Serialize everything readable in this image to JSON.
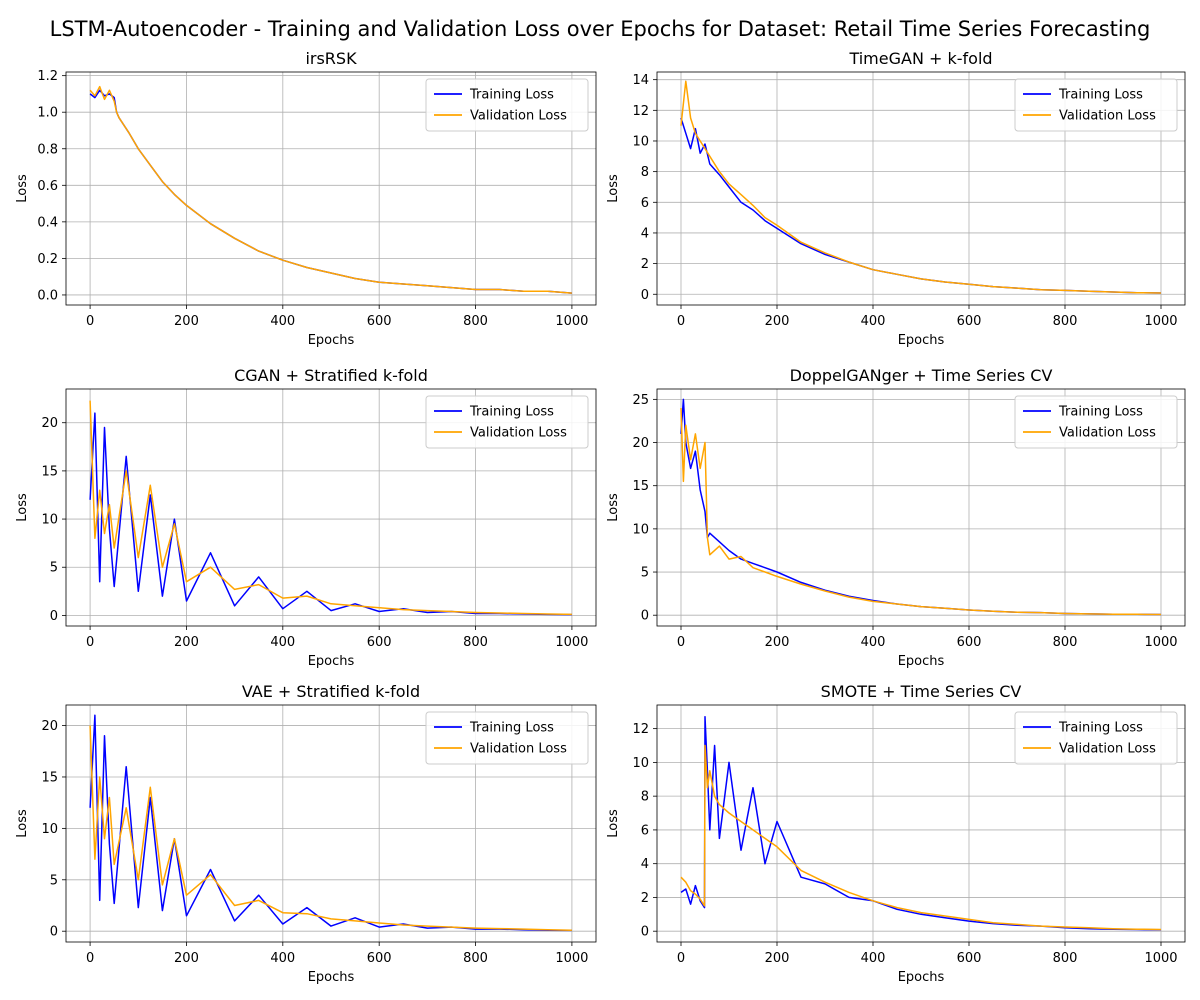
{
  "suptitle": "LSTM-Autoencoder - Training and Validation Loss over Epochs for Dataset: Retail Time Series Forecasting",
  "colors": {
    "train": "#0000ff",
    "val": "#ffa500",
    "grid": "#b0b0b0",
    "axes": "#000000"
  },
  "legend_position": "upper right",
  "legend_labels": [
    "Training Loss",
    "Validation Loss"
  ],
  "chart_data": [
    {
      "type": "line",
      "title": "irsRSK",
      "xlabel": "Epochs",
      "ylabel": "Loss",
      "xlim": [
        -50,
        1050
      ],
      "ylim": [
        -0.055,
        1.22
      ],
      "grid": true,
      "xticks": [
        0,
        200,
        400,
        600,
        800,
        1000
      ],
      "xtick_labels": [
        "0",
        "200",
        "400",
        "600",
        "800",
        "1000"
      ],
      "yticks": [
        0,
        0.2,
        0.4,
        0.6,
        0.8,
        1.0,
        1.2
      ],
      "ytick_labels": [
        "0.0",
        "0.2",
        "0.4",
        "0.6",
        "0.8",
        "1.0",
        "1.2"
      ],
      "series": [
        {
          "name": "Training Loss",
          "color": "#0000ff",
          "x": [
            0,
            10,
            20,
            30,
            40,
            50,
            55,
            60,
            80,
            100,
            125,
            150,
            175,
            200,
            250,
            300,
            350,
            400,
            450,
            500,
            550,
            600,
            650,
            700,
            750,
            800,
            850,
            900,
            950,
            1000
          ],
          "y": [
            1.1,
            1.08,
            1.12,
            1.09,
            1.1,
            1.08,
            1.0,
            0.97,
            0.89,
            0.8,
            0.71,
            0.62,
            0.55,
            0.49,
            0.39,
            0.31,
            0.24,
            0.19,
            0.15,
            0.12,
            0.09,
            0.07,
            0.06,
            0.05,
            0.04,
            0.03,
            0.03,
            0.02,
            0.02,
            0.01
          ]
        },
        {
          "name": "Validation Loss",
          "color": "#ffa500",
          "x": [
            0,
            10,
            20,
            30,
            40,
            50,
            55,
            60,
            80,
            100,
            125,
            150,
            175,
            200,
            250,
            300,
            350,
            400,
            450,
            500,
            550,
            600,
            650,
            700,
            750,
            800,
            850,
            900,
            950,
            1000
          ],
          "y": [
            1.12,
            1.09,
            1.14,
            1.07,
            1.12,
            1.06,
            1.0,
            0.97,
            0.89,
            0.8,
            0.71,
            0.62,
            0.55,
            0.49,
            0.39,
            0.31,
            0.24,
            0.19,
            0.15,
            0.12,
            0.09,
            0.07,
            0.06,
            0.05,
            0.04,
            0.03,
            0.03,
            0.02,
            0.02,
            0.01
          ]
        }
      ]
    },
    {
      "type": "line",
      "title": "TimeGAN + k-fold",
      "xlabel": "Epochs",
      "ylabel": "Loss",
      "xlim": [
        -50,
        1050
      ],
      "ylim": [
        -0.7,
        14.5
      ],
      "grid": true,
      "xticks": [
        0,
        200,
        400,
        600,
        800,
        1000
      ],
      "xtick_labels": [
        "0",
        "200",
        "400",
        "600",
        "800",
        "1000"
      ],
      "yticks": [
        0,
        2,
        4,
        6,
        8,
        10,
        12,
        14
      ],
      "ytick_labels": [
        "0",
        "2",
        "4",
        "6",
        "8",
        "10",
        "12",
        "14"
      ],
      "series": [
        {
          "name": "Training Loss",
          "color": "#0000ff",
          "x": [
            0,
            10,
            20,
            30,
            40,
            50,
            60,
            80,
            100,
            125,
            150,
            175,
            200,
            250,
            300,
            350,
            400,
            450,
            500,
            550,
            600,
            650,
            700,
            750,
            800,
            850,
            900,
            950,
            1000
          ],
          "y": [
            11.5,
            10.5,
            9.5,
            10.8,
            9.2,
            9.8,
            8.5,
            7.8,
            7.0,
            6.0,
            5.5,
            4.8,
            4.3,
            3.3,
            2.6,
            2.1,
            1.6,
            1.3,
            1.0,
            0.8,
            0.65,
            0.5,
            0.4,
            0.3,
            0.25,
            0.2,
            0.15,
            0.1,
            0.08
          ]
        },
        {
          "name": "Validation Loss",
          "color": "#ffa500",
          "x": [
            0,
            10,
            20,
            30,
            40,
            50,
            60,
            80,
            100,
            125,
            150,
            175,
            200,
            250,
            300,
            350,
            400,
            450,
            500,
            550,
            600,
            650,
            700,
            750,
            800,
            850,
            900,
            950,
            1000
          ],
          "y": [
            11.0,
            13.9,
            11.5,
            10.5,
            10.0,
            9.5,
            9.0,
            8.0,
            7.2,
            6.5,
            5.8,
            5.0,
            4.5,
            3.4,
            2.7,
            2.1,
            1.6,
            1.3,
            1.0,
            0.8,
            0.65,
            0.5,
            0.4,
            0.3,
            0.25,
            0.2,
            0.15,
            0.1,
            0.08
          ]
        }
      ]
    },
    {
      "type": "line",
      "title": "CGAN + Stratified k-fold",
      "xlabel": "Epochs",
      "ylabel": "Loss",
      "xlim": [
        -50,
        1050
      ],
      "ylim": [
        -1.1,
        23.5
      ],
      "grid": true,
      "xticks": [
        0,
        200,
        400,
        600,
        800,
        1000
      ],
      "xtick_labels": [
        "0",
        "200",
        "400",
        "600",
        "800",
        "1000"
      ],
      "yticks": [
        0,
        5,
        10,
        15,
        20
      ],
      "ytick_labels": [
        "0",
        "5",
        "10",
        "15",
        "20"
      ],
      "series": [
        {
          "name": "Training Loss",
          "color": "#0000ff",
          "x": [
            0,
            10,
            20,
            30,
            40,
            50,
            75,
            100,
            125,
            150,
            175,
            200,
            250,
            300,
            350,
            400,
            450,
            500,
            550,
            600,
            650,
            700,
            750,
            800,
            850,
            900,
            950,
            1000
          ],
          "y": [
            12.0,
            21.0,
            3.5,
            19.5,
            9.0,
            3.0,
            16.5,
            2.5,
            12.5,
            2.0,
            10.0,
            1.5,
            6.5,
            1.0,
            4.0,
            0.7,
            2.5,
            0.5,
            1.2,
            0.4,
            0.7,
            0.3,
            0.4,
            0.2,
            0.2,
            0.15,
            0.1,
            0.08
          ]
        },
        {
          "name": "Validation Loss",
          "color": "#ffa500",
          "x": [
            0,
            10,
            20,
            30,
            40,
            50,
            75,
            100,
            125,
            150,
            175,
            200,
            250,
            300,
            350,
            400,
            450,
            500,
            550,
            600,
            650,
            700,
            750,
            800,
            850,
            900,
            950,
            1000
          ],
          "y": [
            22.3,
            8.0,
            13.0,
            8.5,
            11.5,
            7.0,
            15.0,
            6.0,
            13.5,
            5.0,
            9.5,
            3.5,
            5.0,
            2.7,
            3.2,
            1.8,
            2.0,
            1.2,
            1.0,
            0.8,
            0.6,
            0.5,
            0.4,
            0.3,
            0.25,
            0.2,
            0.15,
            0.1
          ]
        }
      ]
    },
    {
      "type": "line",
      "title": "DoppelGANger + Time Series CV",
      "xlabel": "Epochs",
      "ylabel": "Loss",
      "xlim": [
        -50,
        1050
      ],
      "ylim": [
        -1.25,
        26.2
      ],
      "grid": true,
      "xticks": [
        0,
        200,
        400,
        600,
        800,
        1000
      ],
      "xtick_labels": [
        "0",
        "200",
        "400",
        "600",
        "800",
        "1000"
      ],
      "yticks": [
        0,
        5,
        10,
        15,
        20,
        25
      ],
      "ytick_labels": [
        "0",
        "5",
        "10",
        "15",
        "20",
        "25"
      ],
      "series": [
        {
          "name": "Training Loss",
          "color": "#0000ff",
          "x": [
            0,
            5,
            10,
            20,
            30,
            40,
            50,
            55,
            60,
            80,
            100,
            125,
            150,
            175,
            200,
            250,
            300,
            350,
            400,
            450,
            500,
            550,
            600,
            650,
            700,
            750,
            800,
            850,
            900,
            950,
            1000
          ],
          "y": [
            21.0,
            25.0,
            20.0,
            17.0,
            19.0,
            14.5,
            12.0,
            9.0,
            9.5,
            8.5,
            7.5,
            6.5,
            6.0,
            5.5,
            5.0,
            3.8,
            2.9,
            2.2,
            1.7,
            1.3,
            1.0,
            0.8,
            0.6,
            0.45,
            0.35,
            0.3,
            0.2,
            0.15,
            0.12,
            0.1,
            0.08
          ]
        },
        {
          "name": "Validation Loss",
          "color": "#ffa500",
          "x": [
            0,
            5,
            10,
            20,
            30,
            40,
            50,
            55,
            60,
            80,
            100,
            125,
            150,
            175,
            200,
            250,
            300,
            350,
            400,
            450,
            500,
            550,
            600,
            650,
            700,
            750,
            800,
            850,
            900,
            950,
            1000
          ],
          "y": [
            24.0,
            15.5,
            22.0,
            18.0,
            21.0,
            17.0,
            20.0,
            9.0,
            7.0,
            8.0,
            6.5,
            6.8,
            5.5,
            5.0,
            4.5,
            3.6,
            2.8,
            2.1,
            1.6,
            1.3,
            1.0,
            0.8,
            0.6,
            0.45,
            0.35,
            0.3,
            0.2,
            0.15,
            0.12,
            0.1,
            0.08
          ]
        }
      ]
    },
    {
      "type": "line",
      "title": "VAE + Stratified k-fold",
      "xlabel": "Epochs",
      "ylabel": "Loss",
      "xlim": [
        -50,
        1050
      ],
      "ylim": [
        -1.05,
        22.0
      ],
      "grid": true,
      "xticks": [
        0,
        200,
        400,
        600,
        800,
        1000
      ],
      "xtick_labels": [
        "0",
        "200",
        "400",
        "600",
        "800",
        "1000"
      ],
      "yticks": [
        0,
        5,
        10,
        15,
        20
      ],
      "ytick_labels": [
        "0",
        "5",
        "10",
        "15",
        "20"
      ],
      "series": [
        {
          "name": "Training Loss",
          "color": "#0000ff",
          "x": [
            0,
            10,
            20,
            30,
            40,
            50,
            75,
            100,
            125,
            150,
            175,
            200,
            250,
            300,
            350,
            400,
            450,
            500,
            550,
            600,
            650,
            700,
            750,
            800,
            850,
            900,
            950,
            1000
          ],
          "y": [
            12.0,
            21.0,
            3.0,
            19.0,
            8.5,
            2.7,
            16.0,
            2.3,
            13.0,
            2.0,
            9.0,
            1.5,
            6.0,
            1.0,
            3.5,
            0.7,
            2.3,
            0.5,
            1.3,
            0.4,
            0.7,
            0.3,
            0.4,
            0.2,
            0.2,
            0.15,
            0.1,
            0.08
          ]
        },
        {
          "name": "Validation Loss",
          "color": "#ffa500",
          "x": [
            0,
            10,
            20,
            30,
            40,
            50,
            75,
            100,
            125,
            150,
            175,
            200,
            250,
            300,
            350,
            400,
            450,
            500,
            550,
            600,
            650,
            700,
            750,
            800,
            850,
            900,
            950,
            1000
          ],
          "y": [
            20.0,
            7.0,
            15.0,
            9.0,
            13.0,
            6.5,
            12.0,
            5.0,
            14.0,
            4.5,
            9.0,
            3.5,
            5.5,
            2.5,
            3.0,
            1.8,
            1.7,
            1.2,
            1.0,
            0.8,
            0.6,
            0.5,
            0.4,
            0.3,
            0.25,
            0.2,
            0.15,
            0.1
          ]
        }
      ]
    },
    {
      "type": "line",
      "title": "SMOTE + Time Series CV",
      "xlabel": "Epochs",
      "ylabel": "Loss",
      "xlim": [
        -50,
        1050
      ],
      "ylim": [
        -0.64,
        13.4
      ],
      "grid": true,
      "xticks": [
        0,
        200,
        400,
        600,
        800,
        1000
      ],
      "xtick_labels": [
        "0",
        "200",
        "400",
        "600",
        "800",
        "1000"
      ],
      "yticks": [
        0,
        2,
        4,
        6,
        8,
        10,
        12
      ],
      "ytick_labels": [
        "0",
        "2",
        "4",
        "6",
        "8",
        "10",
        "12"
      ],
      "series": [
        {
          "name": "Training Loss",
          "color": "#0000ff",
          "x": [
            0,
            10,
            20,
            30,
            40,
            49,
            50,
            55,
            60,
            70,
            80,
            100,
            125,
            150,
            175,
            200,
            250,
            300,
            350,
            400,
            450,
            500,
            550,
            600,
            650,
            700,
            750,
            800,
            850,
            900,
            950,
            1000
          ],
          "y": [
            2.3,
            2.5,
            1.6,
            2.7,
            1.8,
            1.4,
            12.7,
            9.5,
            6.0,
            11.0,
            5.5,
            10.0,
            4.8,
            8.5,
            4.0,
            6.5,
            3.2,
            2.8,
            2.0,
            1.8,
            1.3,
            1.0,
            0.8,
            0.6,
            0.45,
            0.35,
            0.3,
            0.2,
            0.15,
            0.12,
            0.1,
            0.08
          ]
        },
        {
          "name": "Validation Loss",
          "color": "#ffa500",
          "x": [
            0,
            10,
            20,
            30,
            40,
            49,
            50,
            55,
            60,
            70,
            80,
            100,
            125,
            150,
            175,
            200,
            250,
            300,
            350,
            400,
            450,
            500,
            550,
            600,
            650,
            700,
            750,
            800,
            850,
            900,
            950,
            1000
          ],
          "y": [
            3.2,
            2.9,
            2.4,
            2.2,
            1.9,
            1.5,
            11.0,
            8.5,
            9.5,
            8.0,
            7.5,
            7.0,
            6.5,
            6.0,
            5.5,
            5.0,
            3.6,
            2.9,
            2.3,
            1.8,
            1.4,
            1.1,
            0.9,
            0.7,
            0.5,
            0.4,
            0.3,
            0.25,
            0.2,
            0.15,
            0.12,
            0.1
          ]
        }
      ]
    }
  ]
}
